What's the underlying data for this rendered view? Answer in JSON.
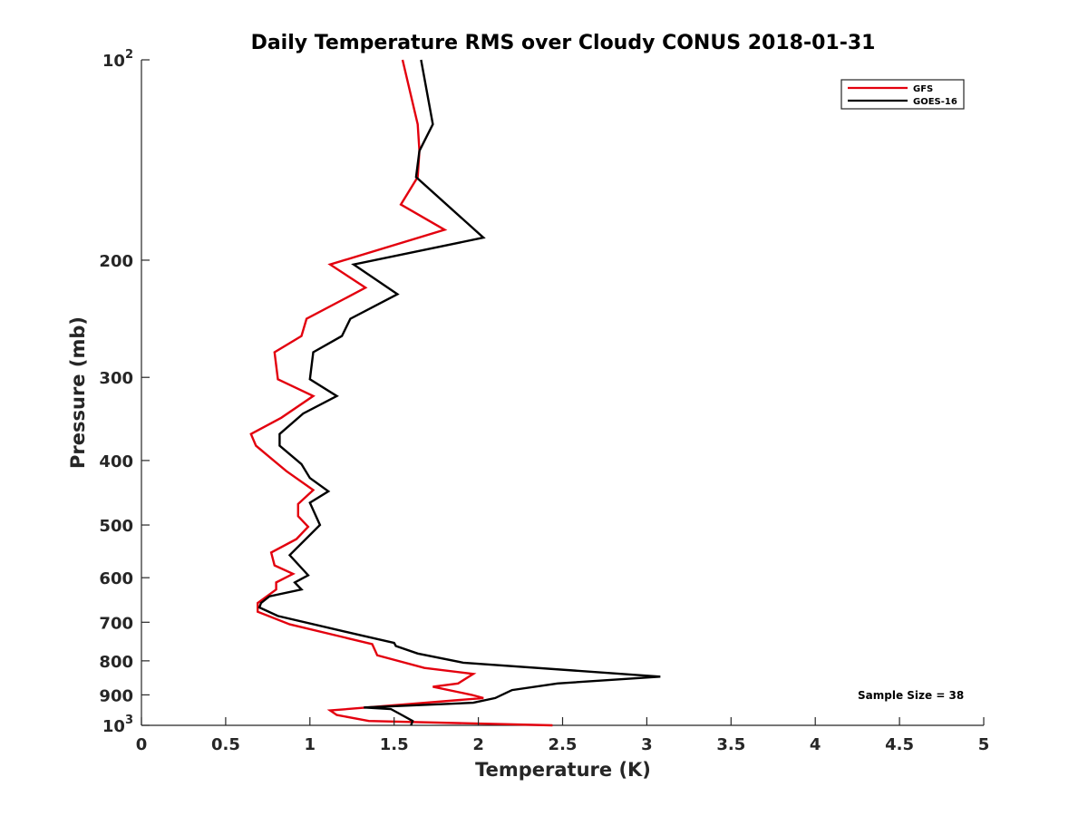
{
  "chart_data": {
    "type": "line",
    "title": "Daily Temperature RMS over Cloudy CONUS 2018-01-31",
    "xlabel": "Temperature (K)",
    "ylabel": "Pressure (mb)",
    "xlim": [
      0,
      5
    ],
    "ylim": [
      100,
      1000
    ],
    "yscale": "log",
    "y_reversed": true,
    "grid": false,
    "legend_position": "top-right",
    "x_ticks": [
      "0",
      "0.5",
      "1",
      "1.5",
      "2",
      "2.5",
      "3",
      "3.5",
      "4",
      "4.5",
      "5"
    ],
    "y_ticks": [
      {
        "value": 100,
        "label": "10",
        "sup": "2"
      },
      {
        "value": 200,
        "label": "200",
        "sup": ""
      },
      {
        "value": 300,
        "label": "300",
        "sup": ""
      },
      {
        "value": 400,
        "label": "400",
        "sup": ""
      },
      {
        "value": 500,
        "label": "500",
        "sup": ""
      },
      {
        "value": 600,
        "label": "600",
        "sup": ""
      },
      {
        "value": 700,
        "label": "700",
        "sup": ""
      },
      {
        "value": 800,
        "label": "800",
        "sup": ""
      },
      {
        "value": 900,
        "label": "900",
        "sup": ""
      },
      {
        "value": 1000,
        "label": "10",
        "sup": "3"
      }
    ],
    "annotation": "Sample Size = 38",
    "series": [
      {
        "name": "GFS",
        "color": "#e3000e",
        "points": [
          [
            1.55,
            100
          ],
          [
            1.64,
            125
          ],
          [
            1.65,
            137
          ],
          [
            1.64,
            150
          ],
          [
            1.54,
            165
          ],
          [
            1.8,
            180
          ],
          [
            1.12,
            203
          ],
          [
            1.33,
            220
          ],
          [
            0.98,
            245
          ],
          [
            0.95,
            260
          ],
          [
            0.79,
            275
          ],
          [
            0.81,
            302
          ],
          [
            1.02,
            320
          ],
          [
            0.83,
            345
          ],
          [
            0.65,
            365
          ],
          [
            0.68,
            380
          ],
          [
            0.86,
            415
          ],
          [
            1.02,
            443
          ],
          [
            0.93,
            465
          ],
          [
            0.93,
            485
          ],
          [
            0.99,
            503
          ],
          [
            0.92,
            525
          ],
          [
            0.77,
            550
          ],
          [
            0.79,
            575
          ],
          [
            0.9,
            592
          ],
          [
            0.8,
            610
          ],
          [
            0.8,
            625
          ],
          [
            0.69,
            655
          ],
          [
            0.69,
            675
          ],
          [
            0.88,
            705
          ],
          [
            1.37,
            755
          ],
          [
            1.39,
            775
          ],
          [
            1.4,
            785
          ],
          [
            1.68,
            820
          ],
          [
            1.97,
            837
          ],
          [
            1.88,
            865
          ],
          [
            1.73,
            875
          ],
          [
            1.96,
            900
          ],
          [
            2.03,
            910
          ],
          [
            1.12,
            950
          ],
          [
            1.16,
            965
          ],
          [
            1.35,
            985
          ],
          [
            2.44,
            1000
          ]
        ]
      },
      {
        "name": "GOES-16",
        "color": "#000000",
        "points": [
          [
            1.66,
            100
          ],
          [
            1.73,
            125
          ],
          [
            1.65,
            137
          ],
          [
            1.63,
            150
          ],
          [
            2.03,
            185
          ],
          [
            1.26,
            203
          ],
          [
            1.52,
            225
          ],
          [
            1.24,
            245
          ],
          [
            1.19,
            260
          ],
          [
            1.02,
            275
          ],
          [
            1.0,
            302
          ],
          [
            1.16,
            320
          ],
          [
            0.96,
            340
          ],
          [
            0.82,
            365
          ],
          [
            0.82,
            380
          ],
          [
            0.95,
            405
          ],
          [
            1.0,
            425
          ],
          [
            1.11,
            445
          ],
          [
            1.0,
            463
          ],
          [
            1.06,
            500
          ],
          [
            0.88,
            555
          ],
          [
            0.99,
            595
          ],
          [
            0.91,
            610
          ],
          [
            0.95,
            625
          ],
          [
            0.76,
            640
          ],
          [
            0.71,
            655
          ],
          [
            0.7,
            665
          ],
          [
            0.81,
            685
          ],
          [
            1.3,
            732
          ],
          [
            1.5,
            752
          ],
          [
            1.51,
            760
          ],
          [
            1.64,
            780
          ],
          [
            1.91,
            805
          ],
          [
            3.08,
            845
          ],
          [
            2.47,
            865
          ],
          [
            2.2,
            885
          ],
          [
            2.1,
            910
          ],
          [
            1.97,
            925
          ],
          [
            1.32,
            940
          ],
          [
            1.48,
            945
          ],
          [
            1.53,
            960
          ],
          [
            1.61,
            985
          ],
          [
            1.6,
            1000
          ]
        ]
      }
    ]
  }
}
